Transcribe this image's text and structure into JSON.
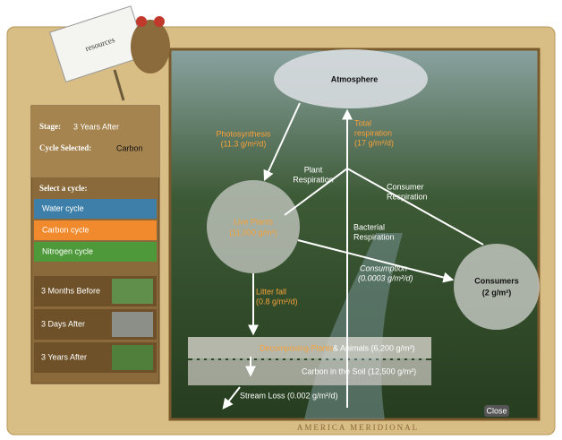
{
  "sidebar": {
    "tag": "resources",
    "stage_label": "Stage:",
    "stage_value": "3 Years After",
    "cycle_label": "Cycle Selected:",
    "cycle_value": "Carbon",
    "select_label": "Select a cycle:",
    "cycles": [
      "Water cycle",
      "Carbon cycle",
      "Nitrogen cycle"
    ],
    "scenarios": [
      "3 Months Before",
      "3 Days After",
      "3 Years After"
    ]
  },
  "diagram": {
    "atmosphere": "Atmosphere",
    "photosynthesis": [
      "Photosynthesis",
      "(11.3 g/m²/d)"
    ],
    "total_respiration": [
      "Total",
      "respiration",
      "(17 g/m²/d)"
    ],
    "plant_respiration": [
      "Plant",
      "Respiration"
    ],
    "consumer_respiration": [
      "Consumer",
      "Respiration"
    ],
    "bacterial_respiration": [
      "Bacterial",
      "Respiration"
    ],
    "live_plants": [
      "Live Plants",
      "(11,000 g/m²)"
    ],
    "consumption": [
      "Consumption",
      "(0.0003 g/m²/d)"
    ],
    "consumers": [
      "Consumers",
      "(2 g/m²)"
    ],
    "litter_fall": [
      "Litter fall",
      "(0.8 g/m²/d)"
    ],
    "decomposing": [
      "Decomposing Plants",
      "& Animals (6,200 g/m²)"
    ],
    "soil": "Carbon in the Soil (12,500 g/m²)",
    "stream_loss": "Stream Loss (0.002 g/m²/d)"
  },
  "close": "Close",
  "footer": "AMERICA MERIDIONAL"
}
